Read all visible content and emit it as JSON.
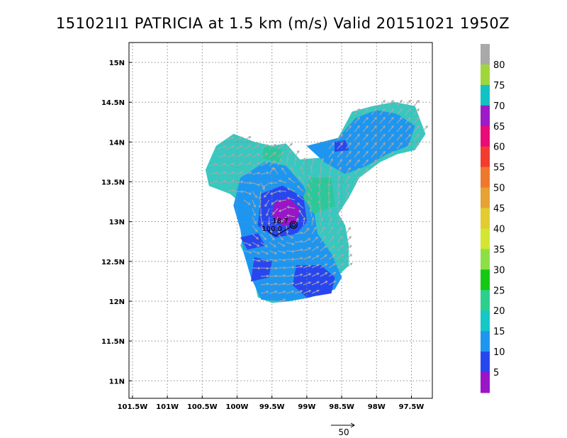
{
  "chart_data": {
    "type": "heatmap",
    "title": "151021I1 PATRICIA at 1.5 km (m/s) Valid 20151021 1950Z",
    "x_ticks": [
      "101.5W",
      "101W",
      "100.5W",
      "100W",
      "99.5W",
      "99W",
      "98.5W",
      "98W",
      "97.5W"
    ],
    "x_tick_values": [
      -101.5,
      -101.0,
      -100.5,
      -100.0,
      -99.5,
      -99.0,
      -98.5,
      -98.0,
      -97.5
    ],
    "y_ticks": [
      "15N",
      "14.5N",
      "14N",
      "13.5N",
      "13N",
      "12.5N",
      "12N",
      "11.5N",
      "11N"
    ],
    "y_tick_values": [
      15.0,
      14.5,
      14.0,
      13.5,
      13.0,
      12.5,
      12.0,
      11.5,
      11.0
    ],
    "xlim": [
      -101.55,
      -97.2
    ],
    "ylim": [
      10.78,
      15.25
    ],
    "grid": true,
    "colorbar": {
      "labels": [
        "80",
        "75",
        "70",
        "65",
        "60",
        "55",
        "50",
        "45",
        "40",
        "35",
        "30",
        "25",
        "20",
        "15",
        "10",
        "5"
      ],
      "bands": [
        {
          "min": 80,
          "max": 85,
          "color": "#a9a9a9"
        },
        {
          "min": 75,
          "max": 80,
          "color": "#a0d63c"
        },
        {
          "min": 70,
          "max": 75,
          "color": "#12c2c2"
        },
        {
          "min": 65,
          "max": 70,
          "color": "#9c1ac8"
        },
        {
          "min": 60,
          "max": 65,
          "color": "#ea0a78"
        },
        {
          "min": 55,
          "max": 60,
          "color": "#f23c32"
        },
        {
          "min": 50,
          "max": 55,
          "color": "#f0782c"
        },
        {
          "min": 45,
          "max": 50,
          "color": "#e6a232"
        },
        {
          "min": 40,
          "max": 45,
          "color": "#e2cc32"
        },
        {
          "min": 35,
          "max": 40,
          "color": "#d2e632"
        },
        {
          "min": 30,
          "max": 35,
          "color": "#8ce046"
        },
        {
          "min": 25,
          "max": 30,
          "color": "#14c814"
        },
        {
          "min": 20,
          "max": 25,
          "color": "#2cd08c"
        },
        {
          "min": 15,
          "max": 20,
          "color": "#14c8c8"
        },
        {
          "min": 10,
          "max": 15,
          "color": "#1e96f0"
        },
        {
          "min": 5,
          "max": 10,
          "color": "#2846f0"
        },
        {
          "min": 0,
          "max": 5,
          "color": "#9a14c8"
        }
      ]
    },
    "wind_regions": [
      {
        "speed": 17,
        "color": "#38c8c0",
        "polygon": [
          [
            -100.45,
            13.65
          ],
          [
            -100.3,
            13.95
          ],
          [
            -100.05,
            14.1
          ],
          [
            -99.75,
            14.0
          ],
          [
            -99.5,
            13.95
          ],
          [
            -99.3,
            13.98
          ],
          [
            -99.1,
            13.78
          ],
          [
            -98.8,
            13.8
          ],
          [
            -98.55,
            14.05
          ],
          [
            -98.35,
            14.38
          ],
          [
            -98.05,
            14.45
          ],
          [
            -97.75,
            14.5
          ],
          [
            -97.45,
            14.45
          ],
          [
            -97.3,
            14.1
          ],
          [
            -97.45,
            13.9
          ],
          [
            -97.7,
            13.85
          ],
          [
            -97.95,
            13.75
          ],
          [
            -98.25,
            13.55
          ],
          [
            -98.4,
            13.3
          ],
          [
            -98.55,
            13.1
          ],
          [
            -98.45,
            12.95
          ],
          [
            -98.4,
            12.7
          ],
          [
            -98.4,
            12.45
          ],
          [
            -98.6,
            12.28
          ],
          [
            -98.7,
            12.15
          ],
          [
            -98.95,
            12.05
          ],
          [
            -99.25,
            12.0
          ],
          [
            -99.5,
            11.98
          ],
          [
            -99.7,
            12.05
          ],
          [
            -99.75,
            12.25
          ],
          [
            -99.85,
            12.5
          ],
          [
            -99.95,
            12.7
          ],
          [
            -99.85,
            12.95
          ],
          [
            -99.9,
            13.2
          ],
          [
            -100.1,
            13.35
          ],
          [
            -100.4,
            13.45
          ]
        ]
      },
      {
        "speed": 14,
        "color": "#1e96f0",
        "polygon": [
          [
            -99.95,
            13.55
          ],
          [
            -99.6,
            13.75
          ],
          [
            -99.3,
            13.7
          ],
          [
            -99.05,
            13.45
          ],
          [
            -98.9,
            13.15
          ],
          [
            -98.85,
            12.85
          ],
          [
            -98.65,
            12.6
          ],
          [
            -98.5,
            12.3
          ],
          [
            -98.6,
            12.15
          ],
          [
            -98.95,
            12.05
          ],
          [
            -99.3,
            12.0
          ],
          [
            -99.65,
            12.02
          ],
          [
            -99.8,
            12.3
          ],
          [
            -99.9,
            12.6
          ],
          [
            -99.95,
            12.9
          ],
          [
            -100.05,
            13.2
          ]
        ]
      },
      {
        "speed": 14,
        "color": "#1e96f0",
        "polygon": [
          [
            -99.0,
            13.95
          ],
          [
            -98.55,
            14.05
          ],
          [
            -98.3,
            14.3
          ],
          [
            -98.0,
            14.4
          ],
          [
            -97.7,
            14.35
          ],
          [
            -97.45,
            14.2
          ],
          [
            -97.55,
            13.95
          ],
          [
            -97.85,
            13.85
          ],
          [
            -98.15,
            13.7
          ],
          [
            -98.45,
            13.6
          ],
          [
            -98.75,
            13.75
          ]
        ]
      },
      {
        "speed": 11,
        "color": "#2846f0",
        "polygon": [
          [
            -99.65,
            13.35
          ],
          [
            -99.35,
            13.45
          ],
          [
            -99.05,
            13.3
          ],
          [
            -99.0,
            13.0
          ],
          [
            -99.15,
            12.85
          ],
          [
            -99.45,
            12.8
          ],
          [
            -99.7,
            12.95
          ]
        ]
      },
      {
        "speed": 11,
        "color": "#2846f0",
        "polygon": [
          [
            -99.95,
            12.8
          ],
          [
            -99.7,
            12.85
          ],
          [
            -99.6,
            12.7
          ],
          [
            -99.85,
            12.65
          ]
        ]
      },
      {
        "speed": 11,
        "color": "#2846f0",
        "polygon": [
          [
            -99.75,
            12.55
          ],
          [
            -99.5,
            12.5
          ],
          [
            -99.55,
            12.3
          ],
          [
            -99.8,
            12.25
          ]
        ]
      },
      {
        "speed": 11,
        "color": "#2846f0",
        "polygon": [
          [
            -99.15,
            12.45
          ],
          [
            -98.8,
            12.45
          ],
          [
            -98.6,
            12.3
          ],
          [
            -98.65,
            12.1
          ],
          [
            -99.0,
            12.05
          ],
          [
            -99.2,
            12.2
          ]
        ]
      },
      {
        "speed": 11,
        "color": "#2846f0",
        "polygon": [
          [
            -98.6,
            14.0
          ],
          [
            -98.45,
            14.02
          ],
          [
            -98.4,
            13.9
          ],
          [
            -98.6,
            13.88
          ]
        ]
      },
      {
        "speed": 5,
        "color": "#9a14c8",
        "polygon": [
          [
            -99.45,
            13.25
          ],
          [
            -99.25,
            13.3
          ],
          [
            -99.1,
            13.15
          ],
          [
            -99.15,
            12.98
          ],
          [
            -99.35,
            12.95
          ],
          [
            -99.5,
            13.08
          ]
        ]
      },
      {
        "speed": 22,
        "color": "#2cc89a",
        "polygon": [
          [
            -98.95,
            13.55
          ],
          [
            -98.65,
            13.55
          ],
          [
            -98.6,
            13.2
          ],
          [
            -98.9,
            13.1
          ],
          [
            -99.05,
            13.3
          ]
        ]
      },
      {
        "speed": 22,
        "color": "#2cc89a",
        "polygon": [
          [
            -99.6,
            13.95
          ],
          [
            -99.35,
            13.9
          ],
          [
            -99.4,
            13.75
          ],
          [
            -99.65,
            13.8
          ]
        ]
      }
    ],
    "annotations": [
      {
        "text": "18.7",
        "lon": -99.38,
        "lat": 12.98
      },
      {
        "text": "100.0",
        "lon": -99.5,
        "lat": 12.88
      }
    ],
    "center": {
      "lon": -99.19,
      "lat": 12.96
    },
    "reference_vector": {
      "label": "50"
    }
  }
}
